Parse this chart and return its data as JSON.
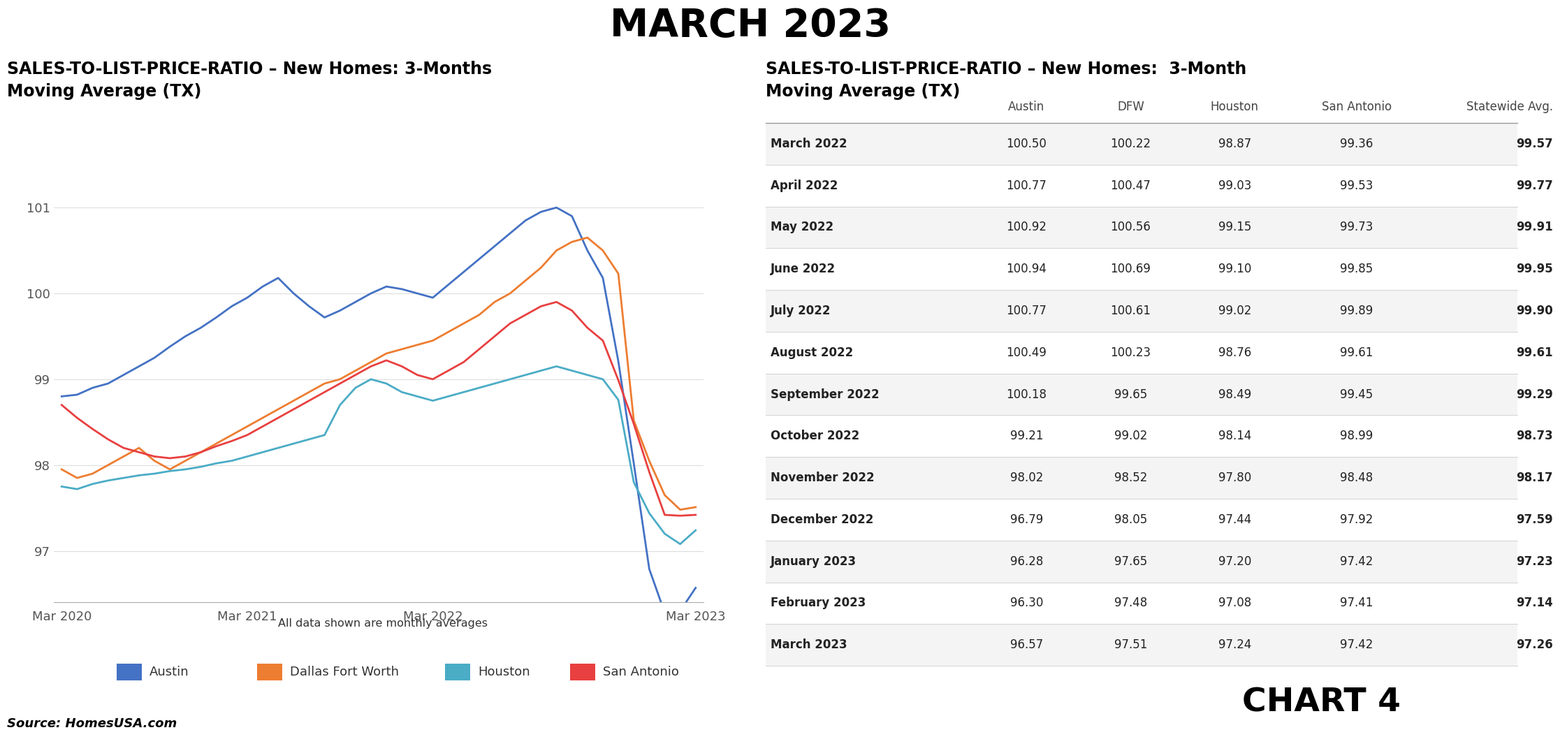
{
  "title": "MARCH 2023",
  "chart_subtitle_left": "SALES-TO-LIST-PRICE-RATIO – New Homes: 3-Months\nMoving Average (TX)",
  "chart_subtitle_right": "SALES-TO-LIST-PRICE-RATIO – New Homes:  3-Month\nMoving Average (TX)",
  "source": "Source: HomesUSA.com",
  "chart4_label": "CHART 4",
  "footnote": "All data shown are monthly averages",
  "colors": {
    "austin": "#4472C4",
    "dfw": "#ED7D31",
    "houston": "#4BACC6",
    "san_antonio": "#E84040"
  },
  "legend_labels": [
    "Austin",
    "Dallas Fort Worth",
    "Houston",
    "San Antonio"
  ],
  "x_labels": [
    "Mar 2020",
    "Mar 2021",
    "Mar 2022",
    "Mar 2023"
  ],
  "yticks": [
    97,
    98,
    99,
    100,
    101
  ],
  "ylim": [
    96.4,
    101.4
  ],
  "table_months": [
    "March 2022",
    "April 2022",
    "May 2022",
    "June 2022",
    "July 2022",
    "August 2022",
    "September 2022",
    "October 2022",
    "November 2022",
    "December 2022",
    "January 2023",
    "February 2023",
    "March 2023"
  ],
  "table_cols": [
    "Austin",
    "DFW",
    "Houston",
    "San Antonio",
    "Statewide Avg."
  ],
  "table_data": [
    [
      100.5,
      100.22,
      98.87,
      99.36,
      99.57
    ],
    [
      100.77,
      100.47,
      99.03,
      99.53,
      99.77
    ],
    [
      100.92,
      100.56,
      99.15,
      99.73,
      99.91
    ],
    [
      100.94,
      100.69,
      99.1,
      99.85,
      99.95
    ],
    [
      100.77,
      100.61,
      99.02,
      99.89,
      99.9
    ],
    [
      100.49,
      100.23,
      98.76,
      99.61,
      99.61
    ],
    [
      100.18,
      99.65,
      98.49,
      99.45,
      99.29
    ],
    [
      99.21,
      99.02,
      98.14,
      98.99,
      98.73
    ],
    [
      98.02,
      98.52,
      97.8,
      98.48,
      98.17
    ],
    [
      96.79,
      98.05,
      97.44,
      97.92,
      97.59
    ],
    [
      96.28,
      97.65,
      97.2,
      97.42,
      97.23
    ],
    [
      96.3,
      97.48,
      97.08,
      97.41,
      97.14
    ],
    [
      96.57,
      97.51,
      97.24,
      97.42,
      97.26
    ]
  ],
  "austin_data": [
    98.8,
    98.82,
    98.9,
    98.95,
    99.05,
    99.15,
    99.25,
    99.38,
    99.5,
    99.6,
    99.72,
    99.85,
    99.95,
    100.08,
    100.18,
    100.0,
    99.85,
    99.72,
    99.8,
    99.9,
    100.0,
    100.08,
    100.05,
    100.0,
    99.95,
    100.1,
    100.25,
    100.4,
    100.55,
    100.7,
    100.85,
    100.95,
    101.0,
    100.9,
    100.5,
    100.18,
    99.21,
    98.02,
    96.79,
    96.28,
    96.3,
    96.57
  ],
  "dfw_data": [
    97.95,
    97.85,
    97.9,
    98.0,
    98.1,
    98.2,
    98.05,
    97.95,
    98.05,
    98.15,
    98.25,
    98.35,
    98.45,
    98.55,
    98.65,
    98.75,
    98.85,
    98.95,
    99.0,
    99.1,
    99.2,
    99.3,
    99.35,
    99.4,
    99.45,
    99.55,
    99.65,
    99.75,
    99.9,
    100.0,
    100.15,
    100.3,
    100.5,
    100.6,
    100.65,
    100.5,
    100.23,
    98.52,
    98.05,
    97.65,
    97.48,
    97.51
  ],
  "houston_data": [
    97.75,
    97.72,
    97.78,
    97.82,
    97.85,
    97.88,
    97.9,
    97.93,
    97.95,
    97.98,
    98.02,
    98.05,
    98.1,
    98.15,
    98.2,
    98.25,
    98.3,
    98.35,
    98.7,
    98.9,
    99.0,
    98.95,
    98.85,
    98.8,
    98.75,
    98.8,
    98.85,
    98.9,
    98.95,
    99.0,
    99.05,
    99.1,
    99.15,
    99.1,
    99.05,
    99.0,
    98.76,
    97.8,
    97.44,
    97.2,
    97.08,
    97.24
  ],
  "san_antonio_data": [
    98.7,
    98.55,
    98.42,
    98.3,
    98.2,
    98.15,
    98.1,
    98.08,
    98.1,
    98.15,
    98.22,
    98.28,
    98.35,
    98.45,
    98.55,
    98.65,
    98.75,
    98.85,
    98.95,
    99.05,
    99.15,
    99.22,
    99.15,
    99.05,
    99.0,
    99.1,
    99.2,
    99.35,
    99.5,
    99.65,
    99.75,
    99.85,
    99.9,
    99.8,
    99.6,
    99.45,
    98.99,
    98.48,
    97.92,
    97.42,
    97.41,
    97.42
  ]
}
